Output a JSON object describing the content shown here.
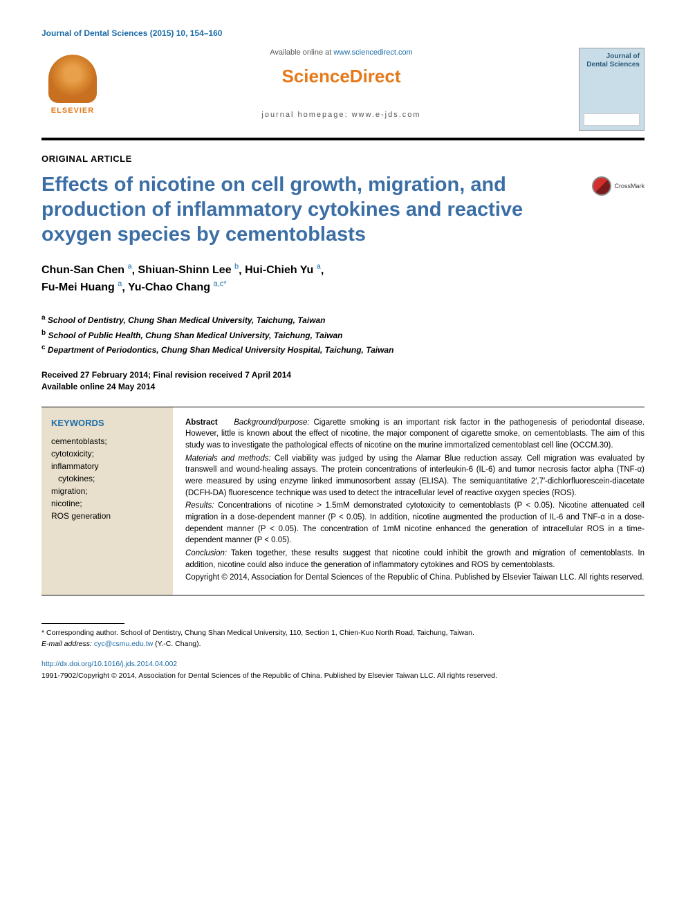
{
  "journal_header": "Journal of Dental Sciences (2015) 10, 154–160",
  "header": {
    "available_prefix": "Available online at ",
    "available_url": "www.sciencedirect.com",
    "sciencedirect": "ScienceDirect",
    "homepage_label": "journal homepage: www.e-jds.com",
    "elsevier": "ELSEVIER",
    "cover_title": "Journal of Dental Sciences"
  },
  "article_type": "ORIGINAL ARTICLE",
  "title": "Effects of nicotine on cell growth, migration, and production of inflammatory cytokines and reactive oxygen species by cementoblasts",
  "crossmark": "CrossMark",
  "authors": [
    {
      "name": "Chun-San Chen",
      "aff": "a"
    },
    {
      "name": "Shiuan-Shinn Lee",
      "aff": "b"
    },
    {
      "name": "Hui-Chieh Yu",
      "aff": "a"
    },
    {
      "name": "Fu-Mei Huang",
      "aff": "a"
    },
    {
      "name": "Yu-Chao Chang",
      "aff": "a,c",
      "corresponding": true
    }
  ],
  "affiliations": [
    {
      "letter": "a",
      "text": "School of Dentistry, Chung Shan Medical University, Taichung, Taiwan"
    },
    {
      "letter": "b",
      "text": "School of Public Health, Chung Shan Medical University, Taichung, Taiwan"
    },
    {
      "letter": "c",
      "text": "Department of Periodontics, Chung Shan Medical University Hospital, Taichung, Taiwan"
    }
  ],
  "dates": {
    "received": "Received 27 February 2014; Final revision received 7 April 2014",
    "online": "Available online 24 May 2014"
  },
  "keywords": {
    "heading": "KEYWORDS",
    "items": [
      "cementoblasts;",
      "cytotoxicity;",
      "inflammatory",
      "   cytokines;",
      "migration;",
      "nicotine;",
      "ROS generation"
    ]
  },
  "abstract": {
    "label": "Abstract",
    "background_label": "Background/purpose:",
    "background": "Cigarette smoking is an important risk factor in the pathogenesis of periodontal disease. However, little is known about the effect of nicotine, the major component of cigarette smoke, on cementoblasts. The aim of this study was to investigate the pathological effects of nicotine on the murine immortalized cementoblast cell line (OCCM.30).",
    "methods_label": "Materials and methods:",
    "methods": "Cell viability was judged by using the Alamar Blue reduction assay. Cell migration was evaluated by transwell and wound-healing assays. The protein concentrations of interleukin-6 (IL-6) and tumor necrosis factor alpha (TNF-α) were measured by using enzyme linked immunosorbent assay (ELISA). The semiquantitative 2′,7′-dichlorfluorescein-diacetate (DCFH-DA) fluorescence technique was used to detect the intracellular level of reactive oxygen species (ROS).",
    "results_label": "Results:",
    "results": "Concentrations of nicotine > 1.5mM demonstrated cytotoxicity to cementoblasts (P < 0.05). Nicotine attenuated cell migration in a dose-dependent manner (P < 0.05). In addition, nicotine augmented the production of IL-6 and TNF-α in a dose-dependent manner (P < 0.05). The concentration of 1mM nicotine enhanced the generation of intracellular ROS in a time-dependent manner (P < 0.05).",
    "conclusion_label": "Conclusion:",
    "conclusion": "Taken together, these results suggest that nicotine could inhibit the growth and migration of cementoblasts. In addition, nicotine could also induce the generation of inflammatory cytokines and ROS by cementoblasts.",
    "copyright": "Copyright © 2014, Association for Dental Sciences of the Republic of China. Published by Elsevier Taiwan LLC. All rights reserved."
  },
  "footnote": {
    "corresponding": "* Corresponding author. School of Dentistry, Chung Shan Medical University, 110, Section 1, Chien-Kuo North Road, Taichung, Taiwan.",
    "email_label": "E-mail address:",
    "email": "cyc@csmu.edu.tw",
    "email_suffix": "(Y.-C. Chang)."
  },
  "doi": "http://dx.doi.org/10.1016/j.jds.2014.04.002",
  "bottom_copyright": "1991-7902/Copyright © 2014, Association for Dental Sciences of the Republic of China. Published by Elsevier Taiwan LLC. All rights reserved.",
  "colors": {
    "link_blue": "#1a6ba8",
    "title_blue": "#3b6ea5",
    "orange": "#e67817",
    "keywords_bg": "#e8e0cc",
    "cover_bg": "#c9dde8"
  }
}
